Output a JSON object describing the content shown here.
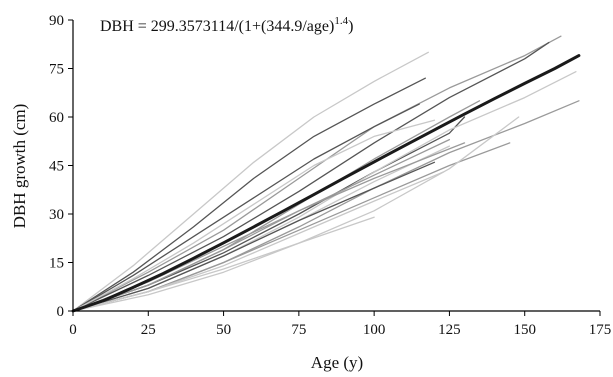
{
  "chart_data": {
    "type": "line",
    "title": "",
    "xlabel": "Age (y)",
    "ylabel": "DBH growth (cm)",
    "xlim": [
      0,
      175
    ],
    "ylim": [
      0,
      90
    ],
    "xticks": [
      0,
      25,
      50,
      75,
      100,
      125,
      150,
      175
    ],
    "yticks": [
      0,
      15,
      30,
      45,
      60,
      75,
      90
    ],
    "annotation": {
      "prefix": "DBH = 299.3573114/(1+(344.9/age)",
      "exponent": "1.4",
      "suffix": ")"
    },
    "grid": false,
    "legend": "none",
    "colors": {
      "model": "#1a1a1a",
      "light": "#c8c8c8",
      "mid": "#9a9a9a",
      "dark": "#555555"
    },
    "model_series": {
      "x": [
        0,
        10,
        20,
        30,
        40,
        50,
        60,
        70,
        80,
        90,
        100,
        110,
        120,
        130,
        140,
        150,
        160,
        168
      ],
      "y": [
        0,
        3.2,
        7.3,
        11.6,
        16.3,
        21.1,
        26.0,
        31.0,
        36.0,
        41.1,
        46.1,
        51.1,
        56.0,
        60.9,
        65.7,
        70.4,
        75.0,
        79.0
      ]
    },
    "series": [
      {
        "tone": "light",
        "x": [
          0,
          20,
          40,
          60,
          80,
          100,
          118
        ],
        "y": [
          0,
          14,
          30,
          46,
          60,
          71,
          80
        ]
      },
      {
        "tone": "dark",
        "x": [
          0,
          20,
          40,
          60,
          80,
          100,
          117
        ],
        "y": [
          0,
          12,
          26,
          41,
          54,
          64,
          72
        ]
      },
      {
        "tone": "mid",
        "x": [
          0,
          25,
          50,
          75,
          100,
          125,
          150,
          162
        ],
        "y": [
          0,
          12,
          25,
          41,
          57,
          69,
          79,
          85
        ]
      },
      {
        "tone": "dark",
        "x": [
          0,
          25,
          50,
          75,
          100,
          125,
          150,
          158
        ],
        "y": [
          0,
          11,
          23,
          37,
          52,
          66,
          78,
          83
        ]
      },
      {
        "tone": "dark",
        "x": [
          0,
          20,
          40,
          60,
          80,
          100,
          115
        ],
        "y": [
          0,
          11,
          23,
          35,
          47,
          57,
          64
        ]
      },
      {
        "tone": "light",
        "x": [
          0,
          20,
          40,
          60,
          80,
          100,
          120
        ],
        "y": [
          0,
          10,
          21,
          33,
          45,
          54,
          59
        ]
      },
      {
        "tone": "mid",
        "x": [
          0,
          25,
          50,
          75,
          100,
          125,
          135
        ],
        "y": [
          0,
          8,
          19,
          33,
          47,
          60,
          65
        ]
      },
      {
        "tone": "dark",
        "x": [
          0,
          25,
          50,
          75,
          100,
          125,
          130
        ],
        "y": [
          0,
          8,
          18,
          30,
          43,
          55,
          60
        ]
      },
      {
        "tone": "light",
        "x": [
          0,
          25,
          50,
          75,
          100,
          125,
          150,
          167
        ],
        "y": [
          0,
          7,
          17,
          29,
          43,
          56,
          66,
          74
        ]
      },
      {
        "tone": "mid",
        "x": [
          0,
          25,
          50,
          75,
          100,
          125,
          150,
          168
        ],
        "y": [
          0,
          6,
          15,
          26,
          38,
          49,
          58,
          65
        ]
      },
      {
        "tone": "mid",
        "x": [
          0,
          25,
          50,
          75,
          100,
          125
        ],
        "y": [
          0,
          8,
          19,
          31,
          42,
          53
        ]
      },
      {
        "tone": "light",
        "x": [
          0,
          25,
          50,
          75,
          100,
          125
        ],
        "y": [
          0,
          7,
          17,
          28,
          40,
          51
        ]
      },
      {
        "tone": "dark",
        "x": [
          0,
          25,
          50,
          75,
          100,
          120
        ],
        "y": [
          0,
          7,
          17,
          28,
          38,
          46
        ]
      },
      {
        "tone": "mid",
        "x": [
          0,
          25,
          50,
          75,
          100,
          125,
          145
        ],
        "y": [
          0,
          6,
          15,
          25,
          35,
          45,
          52
        ]
      },
      {
        "tone": "light",
        "x": [
          0,
          25,
          50,
          75,
          100,
          123
        ],
        "y": [
          0,
          6,
          14,
          24,
          34,
          43
        ]
      },
      {
        "tone": "light",
        "x": [
          0,
          25,
          50,
          75,
          100,
          125,
          148
        ],
        "y": [
          0,
          5,
          12,
          21,
          31,
          44,
          60
        ]
      },
      {
        "tone": "mid",
        "x": [
          0,
          25,
          50,
          75,
          100,
          130
        ],
        "y": [
          0,
          9,
          20,
          31,
          41,
          52
        ]
      },
      {
        "tone": "light",
        "x": [
          0,
          25,
          50,
          75,
          100
        ],
        "y": [
          0,
          6,
          13,
          21,
          29
        ]
      }
    ]
  }
}
